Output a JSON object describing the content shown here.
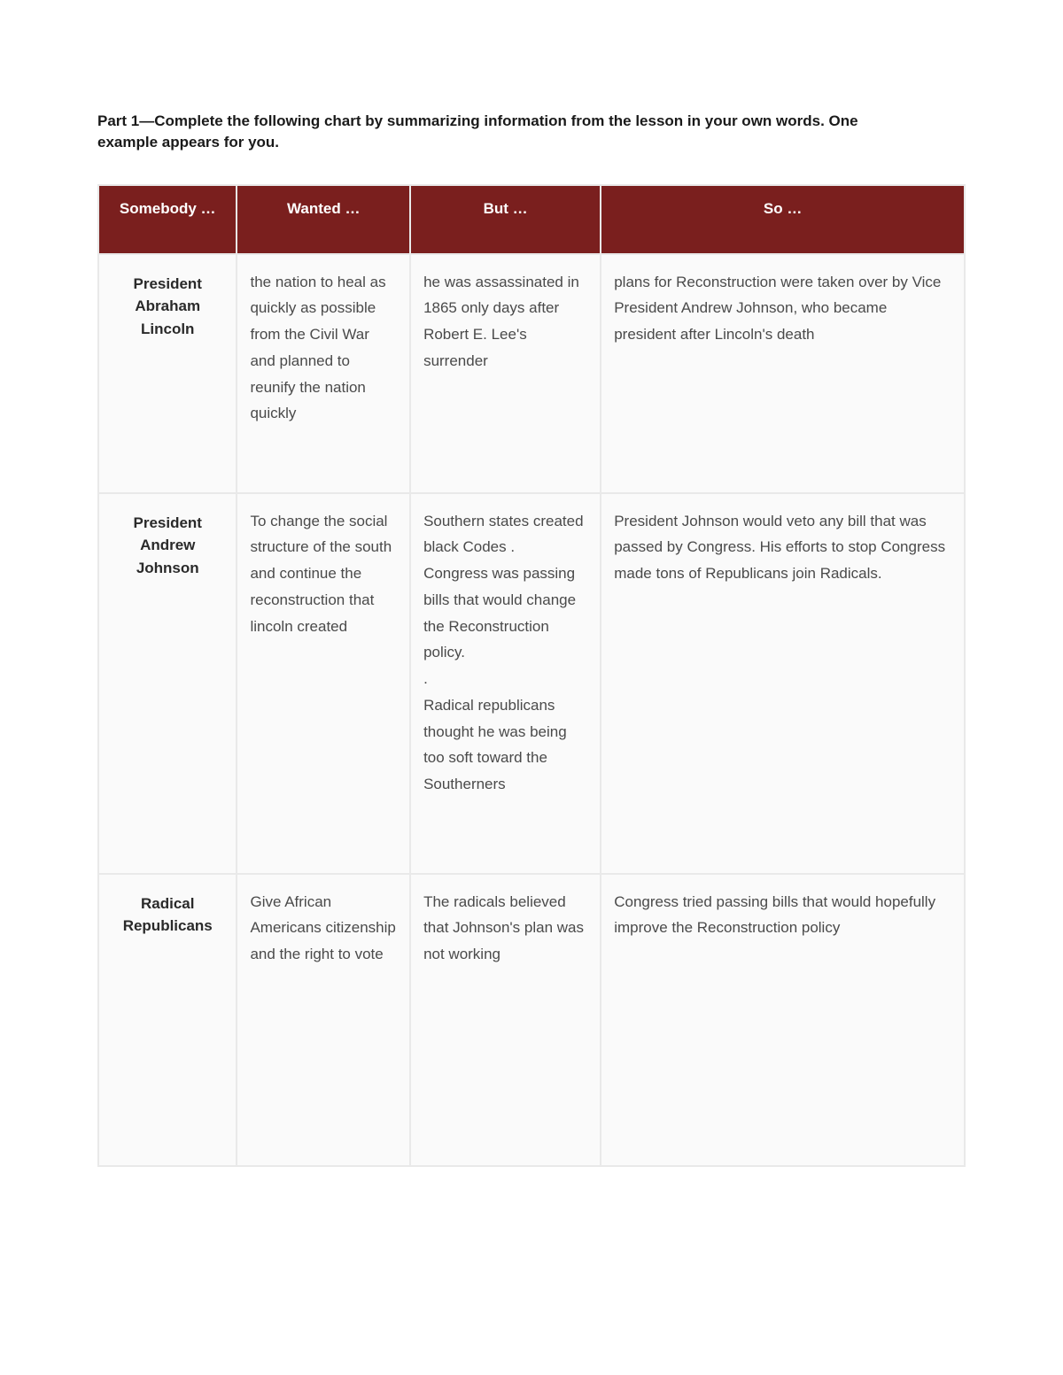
{
  "instructions": "Part 1—Complete the following chart by summarizing information from the lesson in your own words. One example appears for you.",
  "table": {
    "header_bg": "#7a1f1e",
    "header_fg": "#ffffff",
    "cell_bg": "#fafafa",
    "border_color": "#e9e9e9",
    "body_text_color": "#4a4a4a",
    "label_text_color": "#2a2a2a",
    "font_size_pt": 13,
    "columns": [
      {
        "key": "somebody",
        "header": "Somebody …",
        "width_pct": 16
      },
      {
        "key": "wanted",
        "header": "Wanted …",
        "width_pct": 20
      },
      {
        "key": "but",
        "header": "But …",
        "width_pct": 22
      },
      {
        "key": "so",
        "header": "So …",
        "width_pct": 42
      }
    ],
    "rows": [
      {
        "somebody": "President Abraham Lincoln",
        "wanted": "the nation to heal as quickly as possible from the Civil War and planned to reunify the nation quickly",
        "but": "he was assassinated in 1865 only days after Robert E. Lee's surrender",
        "so": "plans for Reconstruction were taken over by Vice President Andrew Johnson, who became president after Lincoln's death"
      },
      {
        "somebody": "President Andrew Johnson",
        "wanted": " To change the social structure of the south and continue the reconstruction that lincoln created",
        "but": " Southern states created black Codes .\nCongress was passing bills that would change the Reconstruction policy.\n.\nRadical republicans thought he was being too soft toward the Southerners",
        "so": "  President Johnson would veto any bill that was passed by Congress. His efforts to stop Congress made tons of Republicans join Radicals."
      },
      {
        "somebody": "Radical Republicans",
        "wanted": " Give African Americans citizenship and the right to vote",
        "but": " The radicals believed that Johnson's plan was not working",
        "so": " Congress tried passing bills that would hopefully improve the Reconstruction policy"
      }
    ]
  }
}
